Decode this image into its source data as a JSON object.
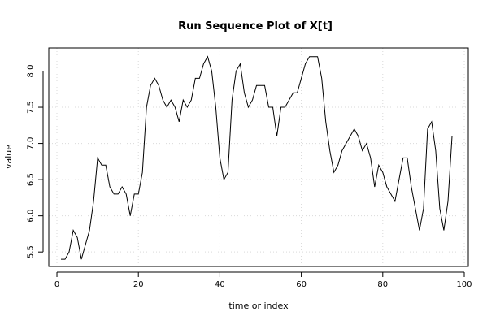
{
  "chart_data": {
    "type": "line",
    "title": "Run Sequence Plot of X[t]",
    "xlabel": "time or index",
    "ylabel": "value",
    "xlim": [
      -2,
      101
    ],
    "ylim": [
      5.3,
      8.32
    ],
    "x_ticks": [
      0,
      20,
      40,
      60,
      80,
      100
    ],
    "x_tick_labels": [
      "0",
      "20",
      "40",
      "60",
      "80",
      "100"
    ],
    "y_ticks": [
      5.5,
      6.0,
      6.5,
      7.0,
      7.5,
      8.0
    ],
    "y_tick_labels": [
      "5.5",
      "6.0",
      "6.5",
      "7.0",
      "7.5",
      "8.0"
    ],
    "grid": true,
    "line_color": "#000000",
    "grid_color": "#d9d9d9",
    "series": [
      {
        "x": [
          1,
          2,
          3,
          4,
          5,
          6,
          7,
          8,
          9,
          10,
          11,
          12,
          13,
          14,
          15,
          16,
          17,
          18,
          19,
          20,
          21,
          22,
          23,
          24,
          25,
          26,
          27,
          28,
          29,
          30,
          31,
          32,
          33,
          34,
          35,
          36,
          37,
          38,
          39,
          40,
          41,
          42,
          43,
          44,
          45,
          46,
          47,
          48,
          49,
          50,
          51,
          52,
          53,
          54,
          55,
          56,
          57,
          58,
          59,
          60,
          61,
          62,
          63,
          64,
          65,
          66,
          67,
          68,
          69,
          70,
          71,
          72,
          73,
          74,
          75,
          76,
          77,
          78,
          79,
          80,
          81,
          82,
          83,
          84,
          85,
          86,
          87,
          88,
          89,
          90,
          91,
          92,
          93,
          94,
          95,
          96,
          97
        ],
        "values": [
          5.4,
          5.4,
          5.5,
          5.8,
          5.7,
          5.4,
          5.6,
          5.8,
          6.2,
          6.8,
          6.7,
          6.7,
          6.4,
          6.3,
          6.3,
          6.4,
          6.3,
          6.0,
          6.3,
          6.3,
          6.6,
          7.5,
          7.8,
          7.9,
          7.8,
          7.6,
          7.5,
          7.6,
          7.5,
          7.3,
          7.6,
          7.5,
          7.6,
          7.9,
          7.9,
          8.1,
          8.2,
          8.0,
          7.5,
          6.8,
          6.5,
          6.6,
          7.6,
          8.0,
          8.1,
          7.7,
          7.5,
          7.6,
          7.8,
          7.8,
          7.8,
          7.5,
          7.5,
          7.1,
          7.5,
          7.5,
          7.6,
          7.7,
          7.7,
          7.9,
          8.1,
          8.2,
          8.2,
          8.2,
          7.9,
          7.3,
          6.9,
          6.6,
          6.7,
          6.9,
          7.0,
          7.1,
          7.2,
          7.1,
          6.9,
          7.0,
          6.8,
          6.4,
          6.7,
          6.6,
          6.4,
          6.3,
          6.2,
          6.5,
          6.8,
          6.8,
          6.4,
          6.1,
          5.8,
          6.1,
          7.2,
          7.3,
          6.9,
          6.1,
          5.8,
          6.2,
          7.1
        ]
      }
    ]
  }
}
